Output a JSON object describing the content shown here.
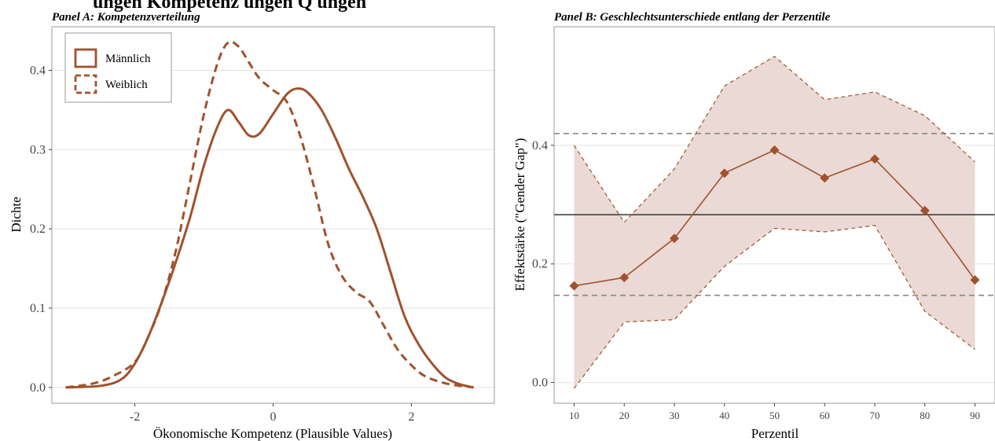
{
  "figure": {
    "title_fragment": "ungen      Kompetenz        ungen         Q        ungen        "
  },
  "colors": {
    "main": "#a0522d",
    "ribbon": "#ead9d4",
    "grid": "#e3e3e3",
    "border": "#9a9a9a",
    "overall": "#333333",
    "ci_line": "#888888"
  },
  "chart_data": [
    {
      "panel": "A",
      "type": "line",
      "title": "Panel A: Kompetenzverteilung",
      "xlabel": "Ökonomische Kompetenz (Plausible Values)",
      "ylabel": "Dichte",
      "xlim": [
        -3.2,
        3.2
      ],
      "ylim": [
        -0.02,
        0.455
      ],
      "xticks": [
        -2,
        0,
        2
      ],
      "yticks": [
        0.0,
        0.1,
        0.2,
        0.3,
        0.4
      ],
      "ytick_labels": [
        "0.0",
        "0.1",
        "0.2",
        "0.3",
        "0.4"
      ],
      "legend": {
        "position": "top-left"
      },
      "series": [
        {
          "name": "Männlich",
          "style": "solid",
          "x": [
            -3.0,
            -2.5,
            -2.2,
            -2.0,
            -1.8,
            -1.6,
            -1.4,
            -1.2,
            -1.0,
            -0.8,
            -0.65,
            -0.5,
            -0.35,
            -0.2,
            0.0,
            0.2,
            0.35,
            0.5,
            0.7,
            0.9,
            1.1,
            1.3,
            1.5,
            1.7,
            1.9,
            2.1,
            2.3,
            2.5,
            2.7,
            2.9
          ],
          "y": [
            0.0,
            0.002,
            0.01,
            0.03,
            0.065,
            0.11,
            0.16,
            0.215,
            0.28,
            0.33,
            0.35,
            0.335,
            0.318,
            0.32,
            0.345,
            0.37,
            0.377,
            0.372,
            0.35,
            0.315,
            0.275,
            0.24,
            0.2,
            0.145,
            0.09,
            0.055,
            0.03,
            0.012,
            0.004,
            0.0
          ]
        },
        {
          "name": "Weiblich",
          "style": "dashed",
          "x": [
            -3.0,
            -2.6,
            -2.3,
            -2.0,
            -1.8,
            -1.6,
            -1.4,
            -1.2,
            -1.0,
            -0.8,
            -0.65,
            -0.5,
            -0.35,
            -0.2,
            0.0,
            0.2,
            0.4,
            0.6,
            0.8,
            1.0,
            1.2,
            1.4,
            1.6,
            1.8,
            2.0,
            2.2,
            2.5,
            2.8,
            2.9
          ],
          "y": [
            0.0,
            0.005,
            0.015,
            0.032,
            0.065,
            0.11,
            0.175,
            0.26,
            0.345,
            0.41,
            0.435,
            0.43,
            0.41,
            0.39,
            0.375,
            0.36,
            0.315,
            0.25,
            0.18,
            0.14,
            0.12,
            0.108,
            0.078,
            0.048,
            0.028,
            0.014,
            0.005,
            0.001,
            0.0
          ]
        }
      ]
    },
    {
      "panel": "B",
      "type": "line",
      "title": "Panel B: Geschlechtsunterschiede entlang der Perzentile",
      "xlabel": "Perzentil",
      "ylabel": "Effektstärke (\"Gender Gap\")",
      "xlim": [
        6,
        94
      ],
      "ylim": [
        -0.035,
        0.6
      ],
      "xticks": [
        10,
        20,
        30,
        40,
        50,
        60,
        70,
        80,
        90
      ],
      "yticks": [
        0.0,
        0.2,
        0.4
      ],
      "ytick_labels": [
        "0.0",
        "0.2",
        "0.4"
      ],
      "x": [
        10,
        20,
        30,
        40,
        50,
        60,
        70,
        80,
        90
      ],
      "series": [
        {
          "name": "",
          "style": "solid-diamond",
          "values": [
            0.163,
            0.177,
            0.243,
            0.353,
            0.392,
            0.345,
            0.377,
            0.29,
            0.173
          ]
        },
        {
          "name": "",
          "style": "dashed-upper",
          "values": [
            0.4,
            0.27,
            0.36,
            0.5,
            0.55,
            0.477,
            0.49,
            0.45,
            0.372
          ]
        },
        {
          "name": "",
          "style": "dashed-lower",
          "values": [
            -0.01,
            0.102,
            0.106,
            0.196,
            0.26,
            0.254,
            0.265,
            0.12,
            0.056
          ]
        }
      ],
      "reference_lines": {
        "overall": 0.283,
        "ci_upper": 0.42,
        "ci_lower": 0.147
      }
    }
  ]
}
